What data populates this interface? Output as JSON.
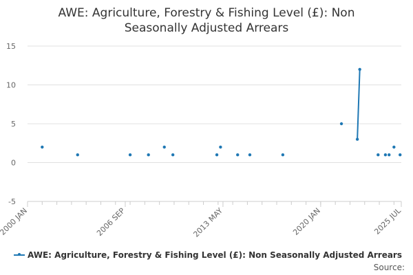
{
  "chart_data": {
    "type": "line",
    "title_lines": [
      "AWE: Agriculture, Forestry & Fishing Level (£): Non",
      "Seasonally Adjusted Arrears"
    ],
    "xlabel": "",
    "ylabel": "",
    "x_ticks": [
      "2000 JAN",
      "2006 SEP",
      "2013 MAY",
      "2020 JAN",
      "2025 JUL"
    ],
    "x_range": [
      "2000-01",
      "2025-07"
    ],
    "ylim": [
      -5,
      15
    ],
    "y_ticks": [
      -5,
      0,
      5,
      10,
      15
    ],
    "grid": true,
    "legend_position": "bottom",
    "series": [
      {
        "name": "AWE: Agriculture, Forestry & Fishing Level (£): Non Seasonally Adjusted Arrears",
        "color": "#1f78b4",
        "points": [
          {
            "x": "2001-01",
            "y": 2
          },
          {
            "x": "2003-06",
            "y": 1
          },
          {
            "x": "2007-01",
            "y": 1
          },
          {
            "x": "2008-04",
            "y": 1
          },
          {
            "x": "2009-05",
            "y": 2
          },
          {
            "x": "2009-12",
            "y": 1
          },
          {
            "x": "2012-12",
            "y": 1
          },
          {
            "x": "2013-03",
            "y": 2
          },
          {
            "x": "2014-05",
            "y": 1
          },
          {
            "x": "2015-03",
            "y": 1
          },
          {
            "x": "2017-06",
            "y": 1
          },
          {
            "x": "2021-06",
            "y": 5
          },
          {
            "x": "2022-07",
            "y": 3
          },
          {
            "x": "2022-09",
            "y": 12
          },
          {
            "x": "2023-12",
            "y": 1
          },
          {
            "x": "2024-06",
            "y": 1
          },
          {
            "x": "2024-09",
            "y": 1
          },
          {
            "x": "2025-01",
            "y": 2
          },
          {
            "x": "2025-06",
            "y": 1
          }
        ],
        "connected_segments": [
          [
            12,
            13
          ]
        ]
      }
    ]
  },
  "source_label": "Source:"
}
